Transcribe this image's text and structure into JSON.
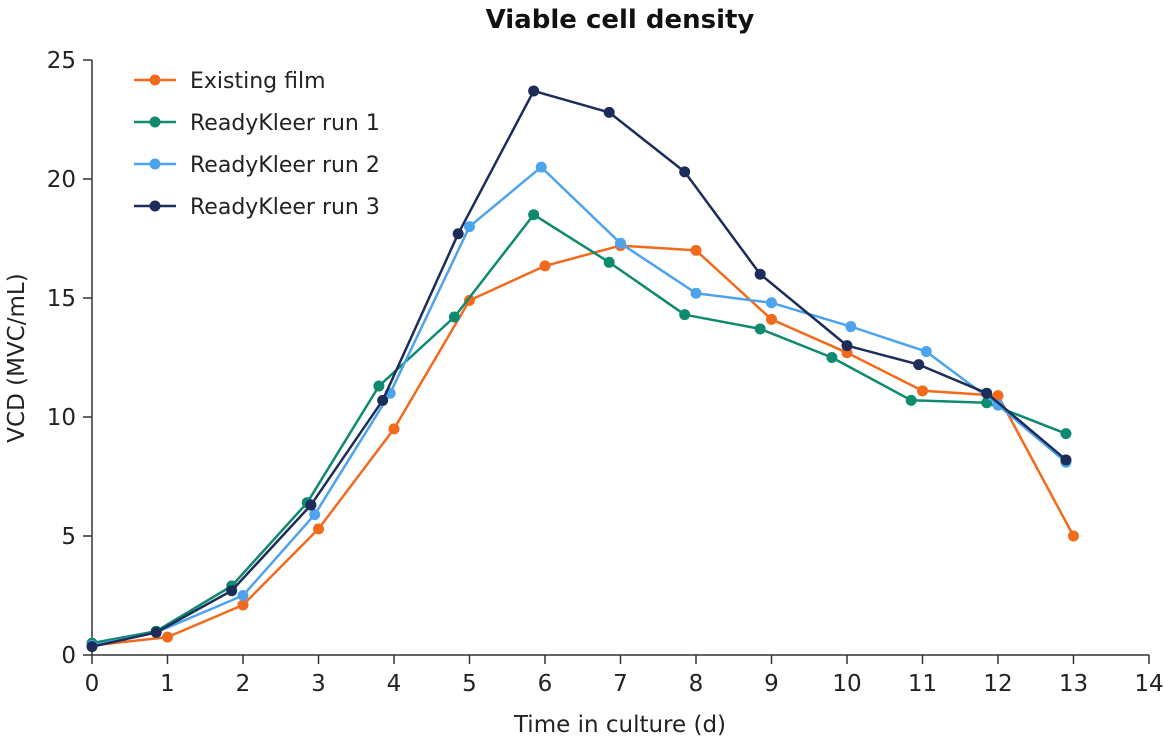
{
  "chart_data": {
    "type": "line",
    "title": "Viable cell density",
    "xlabel": "Time in culture (d)",
    "ylabel": "VCD (MVC/mL)",
    "xlim": [
      0,
      14
    ],
    "ylim": [
      0,
      25
    ],
    "x_ticks": [
      "0",
      "1",
      "2",
      "3",
      "4",
      "5",
      "6",
      "7",
      "8",
      "9",
      "10",
      "11",
      "12",
      "13",
      "14"
    ],
    "y_ticks": [
      "0",
      "5",
      "10",
      "15",
      "20",
      "25"
    ],
    "grid": false,
    "legend_position": "top-left",
    "series": [
      {
        "name": "Existing film",
        "color": "#F26A1B",
        "x": [
          0,
          1,
          2,
          3,
          4,
          5,
          6,
          7,
          8,
          9,
          10,
          11,
          12,
          13
        ],
        "y": [
          0.4,
          0.75,
          2.1,
          5.3,
          9.5,
          14.9,
          16.35,
          17.2,
          17.0,
          14.1,
          12.7,
          11.1,
          10.9,
          5.0
        ]
      },
      {
        "name": "ReadyKleer run 1",
        "color": "#0E8A6E",
        "x": [
          0,
          0.85,
          1.85,
          2.85,
          3.8,
          4.8,
          5.85,
          6.85,
          7.85,
          8.85,
          9.8,
          10.85,
          11.85,
          12.9
        ],
        "y": [
          0.5,
          1.0,
          2.9,
          6.4,
          11.3,
          14.2,
          18.5,
          16.5,
          14.3,
          13.7,
          12.5,
          10.7,
          10.6,
          9.3
        ]
      },
      {
        "name": "ReadyKleer run 2",
        "color": "#4DA3EC",
        "x": [
          0,
          0.85,
          2,
          2.95,
          3.95,
          5,
          5.95,
          7,
          8,
          9,
          10.05,
          11.05,
          12,
          12.9
        ],
        "y": [
          0.4,
          0.95,
          2.5,
          5.9,
          11.0,
          18.0,
          20.5,
          17.3,
          15.2,
          14.8,
          13.8,
          12.75,
          10.5,
          8.1
        ]
      },
      {
        "name": "ReadyKleer run 3",
        "color": "#1C2D5A",
        "x": [
          0,
          0.85,
          1.85,
          2.9,
          3.85,
          4.85,
          5.85,
          6.85,
          7.85,
          8.85,
          10,
          10.95,
          11.85,
          12.9
        ],
        "y": [
          0.35,
          0.95,
          2.7,
          6.3,
          10.7,
          17.7,
          23.7,
          22.8,
          20.3,
          16.0,
          13.0,
          12.2,
          11.0,
          8.2
        ]
      }
    ]
  }
}
